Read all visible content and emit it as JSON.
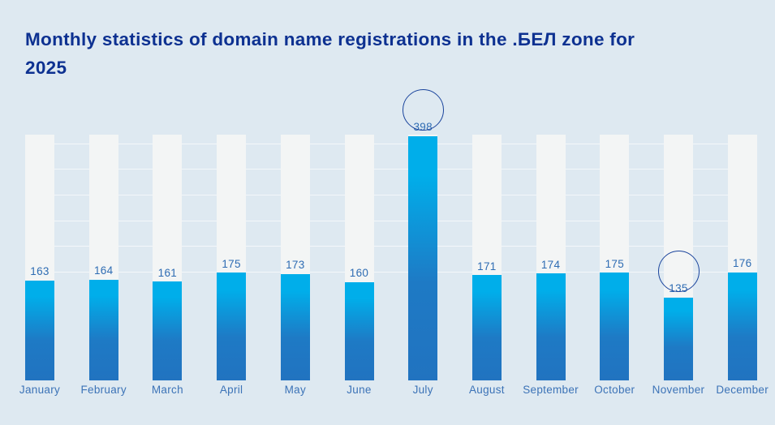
{
  "header": {
    "title": "Monthly statistics of domain name registrations in the .БЕЛ zone for 2025"
  },
  "colors": {
    "background": "#dee9f1",
    "title_text": "#0d3191",
    "bar_track": "#f3f5f5",
    "bar_gradient_top": "#00aeea",
    "bar_gradient_mid": "#1e7ac5",
    "bar_gradient_bottom": "#2173c0",
    "value_label": "#2e6cb3",
    "month_label": "#3c73b7",
    "highlight_circle": "#1a449c",
    "gridline": "rgba(255,255,255,0.65)"
  },
  "chart_data": {
    "type": "bar",
    "title": "Monthly statistics of domain name registrations in the .БЕЛ zone for 2025",
    "categories": [
      "January",
      "February",
      "March",
      "April",
      "May",
      "June",
      "July",
      "August",
      "September",
      "October",
      "November",
      "December"
    ],
    "values": [
      163,
      164,
      161,
      175,
      173,
      160,
      398,
      171,
      174,
      175,
      135,
      176
    ],
    "highlighted_months": [
      "July",
      "November"
    ],
    "xlabel": "",
    "ylabel": "",
    "ylim": [
      0,
      400
    ],
    "grid": true,
    "legend": false
  }
}
